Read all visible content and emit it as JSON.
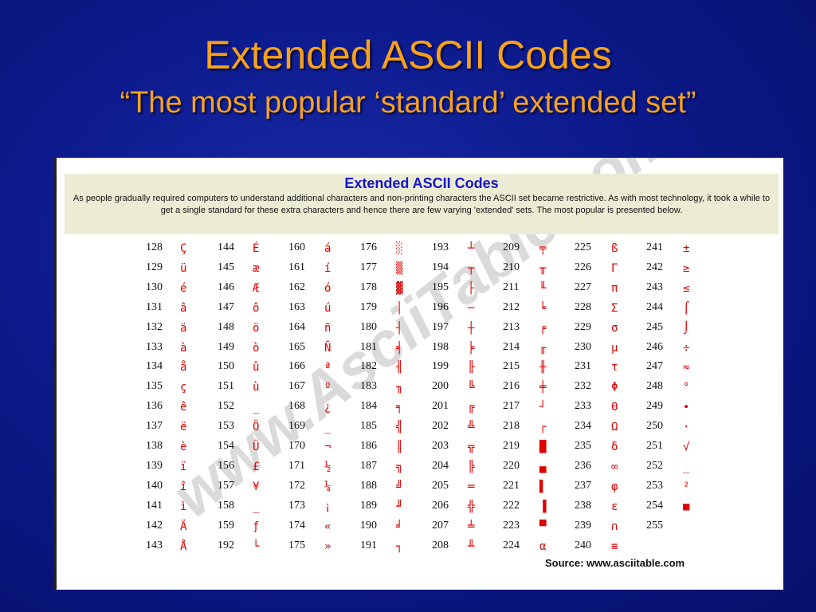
{
  "slide": {
    "title": "Extended ASCII Codes",
    "subtitle": "“The most popular ‘standard’ extended set”"
  },
  "panel": {
    "heading": "Extended ASCII Codes",
    "description": "As people gradually required computers to understand additional characters and non-printing characters the ASCII set became restrictive. As with most technology, it took a while to get a single standard for these extra characters and hence there are few varying 'extended' sets. The most popular is presented below.",
    "source": "Source: www.asciitable.com",
    "watermark": "www.AsciiTable.com"
  },
  "columns": [
    [
      [
        "128",
        "Ç"
      ],
      [
        "129",
        "ü"
      ],
      [
        "130",
        "é"
      ],
      [
        "131",
        "â"
      ],
      [
        "132",
        "ä"
      ],
      [
        "133",
        "à"
      ],
      [
        "134",
        "å"
      ],
      [
        "135",
        "ç"
      ],
      [
        "136",
        "ê"
      ],
      [
        "137",
        "ë"
      ],
      [
        "138",
        "è"
      ],
      [
        "139",
        "ï"
      ],
      [
        "140",
        "î"
      ],
      [
        "141",
        "ì"
      ],
      [
        "142",
        "Ä"
      ],
      [
        "143",
        "Å"
      ]
    ],
    [
      [
        "144",
        "É"
      ],
      [
        "145",
        "æ"
      ],
      [
        "146",
        "Æ"
      ],
      [
        "147",
        "ô"
      ],
      [
        "148",
        "ö"
      ],
      [
        "149",
        "ò"
      ],
      [
        "150",
        "û"
      ],
      [
        "151",
        "ù"
      ],
      [
        "152",
        "_"
      ],
      [
        "153",
        "Ö"
      ],
      [
        "154",
        "Ü"
      ],
      [
        "156",
        "£"
      ],
      [
        "157",
        "¥"
      ],
      [
        "158",
        "_"
      ],
      [
        "159",
        "ƒ"
      ],
      [
        "192",
        "└"
      ]
    ],
    [
      [
        "160",
        "á"
      ],
      [
        "161",
        "í"
      ],
      [
        "162",
        "ó"
      ],
      [
        "163",
        "ú"
      ],
      [
        "164",
        "ñ"
      ],
      [
        "165",
        "Ñ"
      ],
      [
        "166",
        "ª"
      ],
      [
        "167",
        "º"
      ],
      [
        "168",
        "¿"
      ],
      [
        "169",
        "_"
      ],
      [
        "170",
        "¬"
      ],
      [
        "171",
        "½"
      ],
      [
        "172",
        "¼"
      ],
      [
        "173",
        "¡"
      ],
      [
        "174",
        "«"
      ],
      [
        "175",
        "»"
      ]
    ],
    [
      [
        "176",
        "░"
      ],
      [
        "177",
        "▒"
      ],
      [
        "178",
        "▓"
      ],
      [
        "179",
        "│"
      ],
      [
        "180",
        "┤"
      ],
      [
        "181",
        "╡"
      ],
      [
        "182",
        "╢"
      ],
      [
        "183",
        "╖"
      ],
      [
        "184",
        "╕"
      ],
      [
        "185",
        "╣"
      ],
      [
        "186",
        "║"
      ],
      [
        "187",
        "╗"
      ],
      [
        "188",
        "╝"
      ],
      [
        "189",
        "╜"
      ],
      [
        "190",
        "╛"
      ],
      [
        "191",
        "┐"
      ]
    ],
    [
      [
        "193",
        "┴"
      ],
      [
        "194",
        "┬"
      ],
      [
        "195",
        "├"
      ],
      [
        "196",
        "─"
      ],
      [
        "197",
        "┼"
      ],
      [
        "198",
        "╞"
      ],
      [
        "199",
        "╟"
      ],
      [
        "200",
        "╚"
      ],
      [
        "201",
        "╔"
      ],
      [
        "202",
        "╩"
      ],
      [
        "203",
        "╦"
      ],
      [
        "204",
        "╠"
      ],
      [
        "205",
        "═"
      ],
      [
        "206",
        "╬"
      ],
      [
        "207",
        "╧"
      ],
      [
        "208",
        "╨"
      ]
    ],
    [
      [
        "209",
        "╤"
      ],
      [
        "210",
        "╥"
      ],
      [
        "211",
        "╙"
      ],
      [
        "212",
        "╘"
      ],
      [
        "213",
        "╒"
      ],
      [
        "214",
        "╓"
      ],
      [
        "215",
        "╫"
      ],
      [
        "216",
        "╪"
      ],
      [
        "217",
        "┘"
      ],
      [
        "218",
        "┌"
      ],
      [
        "219",
        "█"
      ],
      [
        "220",
        "▄"
      ],
      [
        "221",
        "▌"
      ],
      [
        "222",
        "▐"
      ],
      [
        "223",
        "▀"
      ],
      [
        "224",
        "α"
      ]
    ],
    [
      [
        "225",
        "ß"
      ],
      [
        "226",
        "Γ"
      ],
      [
        "227",
        "π"
      ],
      [
        "228",
        "Σ"
      ],
      [
        "229",
        "σ"
      ],
      [
        "230",
        "µ"
      ],
      [
        "231",
        "τ"
      ],
      [
        "232",
        "Φ"
      ],
      [
        "233",
        "Θ"
      ],
      [
        "234",
        "Ω"
      ],
      [
        "235",
        "δ"
      ],
      [
        "236",
        "∞"
      ],
      [
        "237",
        "φ"
      ],
      [
        "238",
        "ε"
      ],
      [
        "239",
        "∩"
      ],
      [
        "240",
        "≡"
      ]
    ],
    [
      [
        "241",
        "±"
      ],
      [
        "242",
        "≥"
      ],
      [
        "243",
        "≤"
      ],
      [
        "244",
        "⌠"
      ],
      [
        "245",
        "⌡"
      ],
      [
        "246",
        "÷"
      ],
      [
        "247",
        "≈"
      ],
      [
        "248",
        "°"
      ],
      [
        "249",
        "∙"
      ],
      [
        "250",
        "·"
      ],
      [
        "251",
        "√"
      ],
      [
        "252",
        "_"
      ],
      [
        "253",
        "²"
      ],
      [
        "254",
        "■"
      ],
      [
        "255",
        ""
      ]
    ]
  ]
}
